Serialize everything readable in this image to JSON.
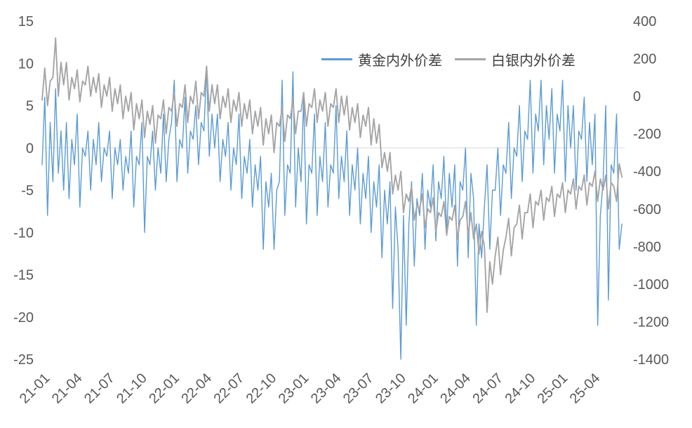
{
  "legend": {
    "gold": "黄金内外价差",
    "silver": "白银内外价差"
  },
  "colors": {
    "gold": "#5B9BD5",
    "silver": "#A5A5A5",
    "axis_text": "#595959",
    "gridline": "#D9D9D9",
    "background": "#FFFFFF"
  },
  "chart_data": {
    "type": "line",
    "title": "",
    "xlabel": "",
    "ylabel_left": "",
    "ylabel_right": "",
    "grid": "zero-line-only",
    "legend_position": "top-right-inside",
    "x_tick_labels": [
      "21-01",
      "21-04",
      "21-07",
      "21-10",
      "22-01",
      "22-04",
      "22-07",
      "22-10",
      "23-01",
      "23-04",
      "23-07",
      "23-10",
      "24-01",
      "24-04",
      "24-07",
      "24-10",
      "25-01",
      "25-04"
    ],
    "left_axis": {
      "min": -25,
      "max": 15,
      "ticks": [
        15,
        10,
        5,
        0,
        -5,
        -10,
        -15,
        -20,
        -25
      ]
    },
    "right_axis": {
      "min": -1400,
      "max": 400,
      "ticks": [
        400,
        200,
        0,
        -200,
        -400,
        -600,
        -800,
        -1000,
        -1200,
        -1400
      ]
    },
    "points_per_month": 4,
    "months_total": 54,
    "series": [
      {
        "name": "黄金内外价差",
        "axis": "left",
        "color": "#5B9BD5",
        "values": [
          -2,
          6,
          -8,
          3,
          -4,
          7,
          -3,
          2,
          -5,
          3,
          -6,
          1,
          -2,
          4,
          -7,
          0,
          -1,
          2,
          -5,
          1,
          -2,
          3,
          -4,
          0,
          -1,
          2,
          -6,
          0,
          -2,
          1,
          -5,
          -1,
          -3,
          2,
          -7,
          -1,
          -2,
          3,
          -10,
          -1,
          -2,
          2,
          -5,
          0,
          -3,
          4,
          -4,
          1,
          3,
          8,
          -4,
          1,
          0,
          6,
          -3,
          2,
          1,
          5,
          -2,
          3,
          2,
          9.5,
          -1,
          4,
          0,
          4,
          -4,
          1,
          -1,
          3,
          -5,
          0,
          -2,
          4,
          -6,
          -1,
          -3,
          1,
          -7,
          -2,
          -5,
          -1,
          -12,
          -4,
          -7,
          -3,
          -12,
          -5,
          -4,
          8,
          -8,
          -2,
          -3,
          9,
          -7,
          0,
          -4,
          6,
          -9,
          -2,
          -3,
          4,
          -8,
          -1,
          -4,
          3,
          -7,
          -2,
          -3,
          5,
          -6,
          -1,
          -4,
          2,
          -8,
          -2,
          -5,
          0,
          -9,
          -3,
          -6,
          -1,
          -10,
          -4,
          -7,
          -2,
          -13,
          -5,
          -9,
          -4,
          -19,
          -7,
          -12,
          -25,
          -8,
          -21,
          -9,
          -4,
          -14,
          -6,
          -8,
          -3,
          -12,
          -5,
          -7,
          -2,
          -11,
          -4,
          -6,
          -1,
          -10,
          -3,
          -7,
          -2,
          -14,
          -4,
          -5,
          0,
          -13,
          -3,
          -6,
          -21,
          -9,
          -13,
          -7,
          -2,
          -12,
          -5,
          -5,
          0,
          -8,
          -2,
          -3,
          3,
          -6,
          0,
          -1,
          5,
          -4,
          2,
          1,
          8,
          -3,
          4,
          2,
          8,
          -2,
          5,
          1,
          7,
          -3,
          4,
          2,
          8,
          -4,
          5,
          0,
          5,
          -5,
          2,
          1,
          6,
          -4,
          3,
          -2,
          4,
          -21,
          -8,
          -4,
          5,
          -18,
          -2,
          -3,
          4,
          -12,
          -9
        ]
      },
      {
        "name": "白银内外价差",
        "axis": "right",
        "color": "#A5A5A5",
        "values": [
          -20,
          150,
          -50,
          80,
          100,
          310,
          0,
          180,
          60,
          180,
          -20,
          100,
          40,
          140,
          -30,
          80,
          60,
          160,
          0,
          100,
          20,
          120,
          -60,
          60,
          0,
          100,
          -80,
          40,
          -40,
          60,
          -120,
          0,
          -80,
          20,
          -180,
          -40,
          -120,
          -20,
          -220,
          -80,
          -150,
          -50,
          -250,
          -100,
          -120,
          -20,
          -200,
          -60,
          -80,
          20,
          -160,
          -40,
          -60,
          60,
          -140,
          0,
          -40,
          80,
          -120,
          20,
          0,
          160,
          -80,
          60,
          -40,
          60,
          -120,
          0,
          -60,
          40,
          -140,
          -20,
          -80,
          20,
          -160,
          -40,
          -120,
          -20,
          -200,
          -80,
          -160,
          -60,
          -260,
          -120,
          -200,
          -100,
          -300,
          -140,
          -160,
          -60,
          -240,
          -100,
          -120,
          -20,
          -200,
          -80,
          -80,
          20,
          -160,
          -40,
          -60,
          40,
          -140,
          -20,
          -80,
          20,
          -160,
          -40,
          -60,
          40,
          -140,
          0,
          -100,
          0,
          -180,
          -60,
          -140,
          -40,
          -220,
          -100,
          -160,
          -60,
          -260,
          -120,
          -250,
          -150,
          -380,
          -300,
          -400,
          -300,
          -520,
          -420,
          -500,
          -400,
          -620,
          -520,
          -560,
          -480,
          -660,
          -580,
          -600,
          -520,
          -700,
          -600,
          -620,
          -540,
          -720,
          -620,
          -640,
          -560,
          -740,
          -640,
          -660,
          -580,
          -760,
          -660,
          -640,
          -560,
          -740,
          -620,
          -760,
          -680,
          -840,
          -720,
          -800,
          -1150,
          -880,
          -1000,
          -850,
          -750,
          -950,
          -820,
          -750,
          -650,
          -850,
          -700,
          -680,
          -580,
          -760,
          -620,
          -620,
          -520,
          -700,
          -560,
          -580,
          -500,
          -660,
          -540,
          -560,
          -480,
          -640,
          -520,
          -540,
          -460,
          -620,
          -500,
          -520,
          -440,
          -600,
          -480,
          -500,
          -420,
          -580,
          -460,
          -480,
          -400,
          -560,
          -440,
          -500,
          -420,
          -600,
          -460,
          -480,
          -560,
          -360,
          -430
        ]
      }
    ]
  }
}
